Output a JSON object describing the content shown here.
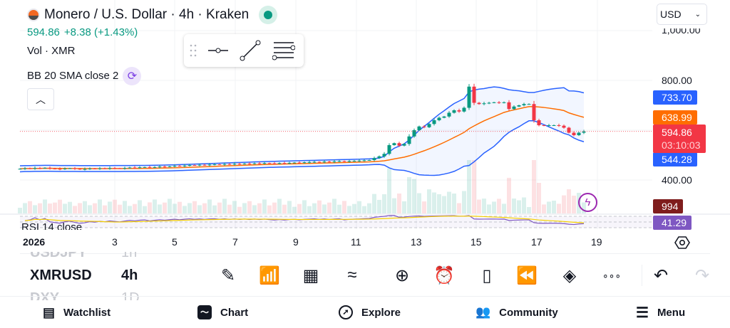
{
  "header": {
    "title": "Monero / U.S. Dollar · 4h · Kraken",
    "price": "594.86",
    "change": "+8.38 (+1.43%)",
    "vol_label": "Vol · XMR",
    "bb_label": "BB 20 SMA close 2",
    "rsi_label": "RSI 14 close"
  },
  "currency": {
    "selected": "USD"
  },
  "price_scale": {
    "ticks": [
      "1,000.00",
      "800.00",
      "400.00"
    ],
    "bb_upper": "733.70",
    "bb_basis": "638.99",
    "last_price": "594.86",
    "countdown": "03:10:03",
    "bb_lower": "544.28",
    "volume": "994",
    "rsi": "41.29"
  },
  "time_axis": {
    "labels": [
      "2026",
      "3",
      "5",
      "7",
      "9",
      "11",
      "13",
      "15",
      "17",
      "19"
    ]
  },
  "symbols": [
    {
      "symbol": "USDJPY",
      "interval": "1h"
    },
    {
      "symbol": "XMRUSD",
      "interval": "4h"
    },
    {
      "symbol": "DXY",
      "interval": "1D"
    }
  ],
  "toolbar": [
    "pencil-icon",
    "indicators-icon",
    "templates-icon",
    "compare-icon",
    "add-icon",
    "alert-icon",
    "candles-icon",
    "replay-icon",
    "layers-icon",
    "more-icon",
    "undo-icon",
    "redo-icon"
  ],
  "nav": [
    {
      "label": "Watchlist",
      "icon": "watchlist-icon"
    },
    {
      "label": "Chart",
      "icon": "chart-icon"
    },
    {
      "label": "Explore",
      "icon": "compass-icon"
    },
    {
      "label": "Community",
      "icon": "community-icon"
    },
    {
      "label": "Menu",
      "icon": "menu-icon"
    }
  ],
  "colors": {
    "up": "#089981",
    "down": "#f23645",
    "bb_band": "#2962ff",
    "bb_basis": "#ff6d00",
    "rsi": "#7e57c2",
    "accent": "#7b3fe4"
  },
  "chart_data": {
    "type": "candlestick",
    "interval": "4h",
    "closes": [
      445,
      447,
      446,
      448,
      447,
      449,
      446,
      445,
      444,
      446,
      447,
      445,
      443,
      444,
      446,
      445,
      447,
      446,
      448,
      447,
      446,
      448,
      450,
      449,
      451,
      452,
      450,
      452,
      454,
      453,
      455,
      457,
      456,
      458,
      460,
      459,
      461,
      460,
      462,
      463,
      462,
      464,
      463,
      465,
      464,
      466,
      465,
      467,
      466,
      468,
      467,
      466,
      468,
      467,
      469,
      470,
      469,
      471,
      472,
      473,
      472,
      474,
      473,
      475,
      476,
      474,
      476,
      477,
      478,
      479,
      480,
      488,
      495,
      505,
      540,
      548,
      538,
      545,
      575,
      600,
      615,
      612,
      625,
      640,
      650,
      655,
      670,
      680,
      675,
      690,
      775,
      710,
      705,
      708,
      710,
      712,
      710,
      712,
      685,
      695,
      700,
      705,
      705,
      640,
      620,
      618,
      620,
      620,
      618,
      610,
      590,
      580,
      590,
      595
    ],
    "ylim": [
      340,
      1020
    ]
  }
}
